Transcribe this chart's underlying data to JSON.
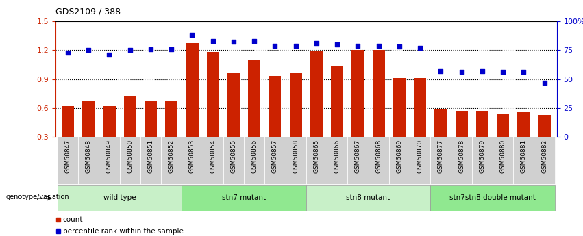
{
  "title": "GDS2109 / 388",
  "samples": [
    "GSM50847",
    "GSM50848",
    "GSM50849",
    "GSM50850",
    "GSM50851",
    "GSM50852",
    "GSM50853",
    "GSM50854",
    "GSM50855",
    "GSM50856",
    "GSM50857",
    "GSM50858",
    "GSM50865",
    "GSM50866",
    "GSM50867",
    "GSM50868",
    "GSM50869",
    "GSM50870",
    "GSM50877",
    "GSM50878",
    "GSM50879",
    "GSM50880",
    "GSM50881",
    "GSM50882"
  ],
  "bar_values": [
    0.62,
    0.68,
    0.62,
    0.72,
    0.68,
    0.67,
    1.27,
    1.18,
    0.97,
    1.1,
    0.93,
    0.97,
    1.19,
    1.03,
    1.2,
    1.2,
    0.91,
    0.91,
    0.59,
    0.57,
    0.57,
    0.54,
    0.56,
    0.53
  ],
  "dot_values": [
    73,
    75,
    71,
    75,
    76,
    76,
    88,
    83,
    82,
    83,
    79,
    79,
    81,
    80,
    79,
    79,
    78,
    77,
    57,
    56,
    57,
    56,
    56,
    47
  ],
  "groups": [
    {
      "label": "wild type",
      "start": 0,
      "end": 5,
      "color": "#c8f0c8"
    },
    {
      "label": "stn7 mutant",
      "start": 6,
      "end": 11,
      "color": "#90e890"
    },
    {
      "label": "stn8 mutant",
      "start": 12,
      "end": 17,
      "color": "#c8f0c8"
    },
    {
      "label": "stn7stn8 double mutant",
      "start": 18,
      "end": 23,
      "color": "#90e890"
    }
  ],
  "bar_color": "#cc2200",
  "dot_color": "#0000cc",
  "ylim_left": [
    0.3,
    1.5
  ],
  "ylim_right": [
    0,
    100
  ],
  "yticks_left": [
    0.3,
    0.6,
    0.9,
    1.2,
    1.5
  ],
  "yticks_right": [
    0,
    25,
    50,
    75,
    100
  ],
  "ytick_labels_right": [
    "0",
    "25",
    "50",
    "75",
    "100%"
  ],
  "hlines": [
    0.6,
    0.9,
    1.2
  ],
  "genotype_label": "genotype/variation",
  "legend_bar": "count",
  "legend_dot": "percentile rank within the sample",
  "tick_label_color": "#cc2200",
  "right_tick_color": "#0000cc",
  "sample_box_color": "#d0d0d0",
  "title_fontsize": 9,
  "bar_width": 0.6
}
